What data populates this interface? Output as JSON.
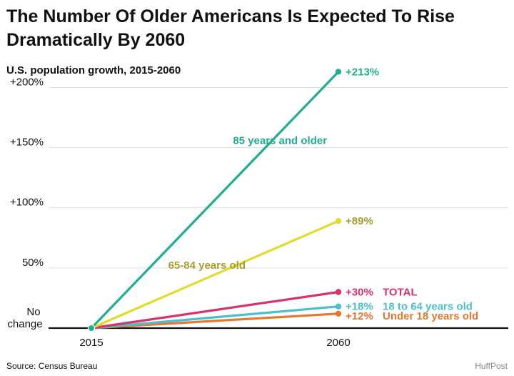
{
  "header": {
    "title_line1": "The Number Of Older Americans Is Expected To Rise",
    "title_line2": "Dramatically By 2060",
    "subtitle": "U.S. population growth, 2015-2060"
  },
  "footer": {
    "source": "Source: Census Bureau",
    "credit": "HuffPost"
  },
  "chart_data": {
    "type": "line",
    "x": [
      2015,
      2060
    ],
    "x_tick_labels": [
      "2015",
      "2060"
    ],
    "ylim": [
      0,
      213
    ],
    "y_ticks": [
      {
        "value": 0,
        "label_line1": "No",
        "label_line2": "change"
      },
      {
        "value": 50,
        "label_line1": "50%",
        "label_line2": ""
      },
      {
        "value": 100,
        "label_line1": "+100%",
        "label_line2": ""
      },
      {
        "value": 150,
        "label_line1": "+150%",
        "label_line2": ""
      },
      {
        "value": 200,
        "label_line1": "+200%",
        "label_line2": ""
      }
    ],
    "grid": true,
    "series": [
      {
        "name": "85 years and older",
        "values": [
          0,
          213
        ],
        "end_label": "+213%",
        "color": "#1fae8f",
        "label_color": "#1fae8f",
        "label_mode": "along"
      },
      {
        "name": "65-84 years old",
        "values": [
          0,
          89
        ],
        "end_label": "+89%",
        "color": "#e2db2a",
        "label_color": "#a89e2e",
        "label_mode": "along"
      },
      {
        "name": "TOTAL",
        "values": [
          0,
          30
        ],
        "end_label": "+30%",
        "color": "#d8326a",
        "label_color": "#d8326a",
        "label_mode": "end"
      },
      {
        "name": "18 to 64 years old",
        "values": [
          0,
          18
        ],
        "end_label": "+18%",
        "color": "#4bc0cc",
        "label_color": "#4bc0cc",
        "label_mode": "end"
      },
      {
        "name": "Under 18 years old",
        "values": [
          0,
          12
        ],
        "end_label": "+12%",
        "color": "#e8772e",
        "label_color": "#e8772e",
        "label_mode": "end"
      }
    ]
  }
}
